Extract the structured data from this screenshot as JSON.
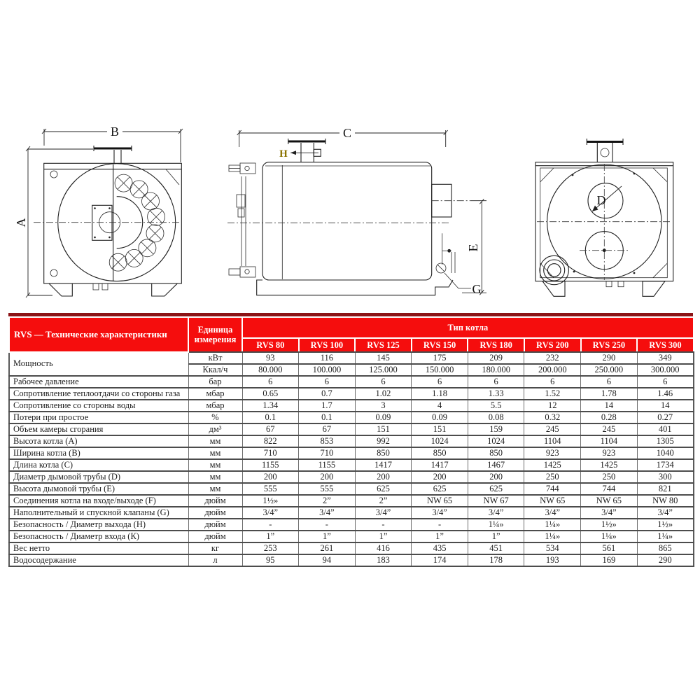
{
  "drawings": {
    "front": {
      "height_label": "A",
      "width_label": "B"
    },
    "side": {
      "length_label": "C",
      "flue_height_label": "E",
      "drain_label": "G",
      "tap_label": "H"
    },
    "rear": {
      "flue_label": "D"
    }
  },
  "table": {
    "corner_title": "RVS — Технические характеристики",
    "unit_header": "Единица измерения",
    "type_header": "Тип котла",
    "models": [
      "RVS 80",
      "RVS 100",
      "RVS 125",
      "RVS 150",
      "RVS 180",
      "RVS 200",
      "RVS 250",
      "RVS 300"
    ],
    "rows": [
      {
        "label": "Мощность",
        "rowspan": 2,
        "unit": "кВт",
        "values": [
          "93",
          "116",
          "145",
          "175",
          "209",
          "232",
          "290",
          "349"
        ]
      },
      {
        "label": null,
        "unit": "Ккал/ч",
        "values": [
          "80.000",
          "100.000",
          "125.000",
          "150.000",
          "180.000",
          "200.000",
          "250.000",
          "300.000"
        ]
      },
      {
        "label": "Рабочее давление",
        "unit": "бар",
        "values": [
          "6",
          "6",
          "6",
          "6",
          "6",
          "6",
          "6",
          "6"
        ]
      },
      {
        "label": "Сопротивление теплоотдачи со стороны газа",
        "unit": "мбар",
        "values": [
          "0.65",
          "0.7",
          "1.02",
          "1.18",
          "1.33",
          "1.52",
          "1.78",
          "1.46"
        ]
      },
      {
        "label": "Сопротивление со стороны воды",
        "unit": "мбар",
        "values": [
          "1.34",
          "1.7",
          "3",
          "4",
          "5.5",
          "12",
          "14",
          "14"
        ]
      },
      {
        "label": "Потери при простое",
        "unit": "%",
        "values": [
          "0.1",
          "0.1",
          "0.09",
          "0.09",
          "0.08",
          "0.32",
          "0.28",
          "0.27"
        ]
      },
      {
        "label": "Объем камеры сгорания",
        "unit": "дм³",
        "values": [
          "67",
          "67",
          "151",
          "151",
          "159",
          "245",
          "245",
          "401"
        ]
      },
      {
        "label": "Высота котла (A)",
        "unit": "мм",
        "values": [
          "822",
          "853",
          "992",
          "1024",
          "1024",
          "1104",
          "1104",
          "1305"
        ]
      },
      {
        "label": "Ширина котла (B)",
        "unit": "мм",
        "values": [
          "710",
          "710",
          "850",
          "850",
          "850",
          "923",
          "923",
          "1040"
        ]
      },
      {
        "label": "Длина котла (C)",
        "unit": "мм",
        "values": [
          "1155",
          "1155",
          "1417",
          "1417",
          "1467",
          "1425",
          "1425",
          "1734"
        ]
      },
      {
        "label": "Диаметр дымовой трубы (D)",
        "unit": "мм",
        "values": [
          "200",
          "200",
          "200",
          "200",
          "200",
          "250",
          "250",
          "300"
        ]
      },
      {
        "label": "Высота дымовой трубы (E)",
        "unit": "мм",
        "values": [
          "555",
          "555",
          "625",
          "625",
          "625",
          "744",
          "744",
          "821"
        ]
      },
      {
        "label": "Соединения котла на входе/выходе (F)",
        "unit": "дюйм",
        "values": [
          "1½»",
          "2”",
          "2”",
          "NW 65",
          "NW 67",
          "NW 65",
          "NW 65",
          "NW 80"
        ]
      },
      {
        "label": "Наполнительный и спускной клапаны (G)",
        "unit": "дюйм",
        "values": [
          "3/4”",
          "3/4”",
          "3/4”",
          "3/4”",
          "3/4”",
          "3/4”",
          "3/4”",
          "3/4”"
        ]
      },
      {
        "label": "Безопасность / Диаметр выхода (H)",
        "unit": "дюйм",
        "values": [
          "-",
          "-",
          "-",
          "-",
          "1¼»",
          "1¼»",
          "1½»",
          "1½»"
        ]
      },
      {
        "label": "Безопасность / Диаметр входа (К)",
        "unit": "дюйм",
        "values": [
          "1”",
          "1”",
          "1”",
          "1”",
          "1”",
          "1¼»",
          "1¼»",
          "1¼»"
        ]
      },
      {
        "label": "Вес нетто",
        "unit": "кг",
        "values": [
          "253",
          "261",
          "416",
          "435",
          "451",
          "534",
          "561",
          "865"
        ]
      },
      {
        "label": "Водосодержание",
        "unit": "л",
        "values": [
          "95",
          "94",
          "183",
          "174",
          "178",
          "193",
          "169",
          "290"
        ]
      }
    ]
  },
  "colors": {
    "header_red": "#f50d0d",
    "border_dark_red": "#8c1316"
  }
}
